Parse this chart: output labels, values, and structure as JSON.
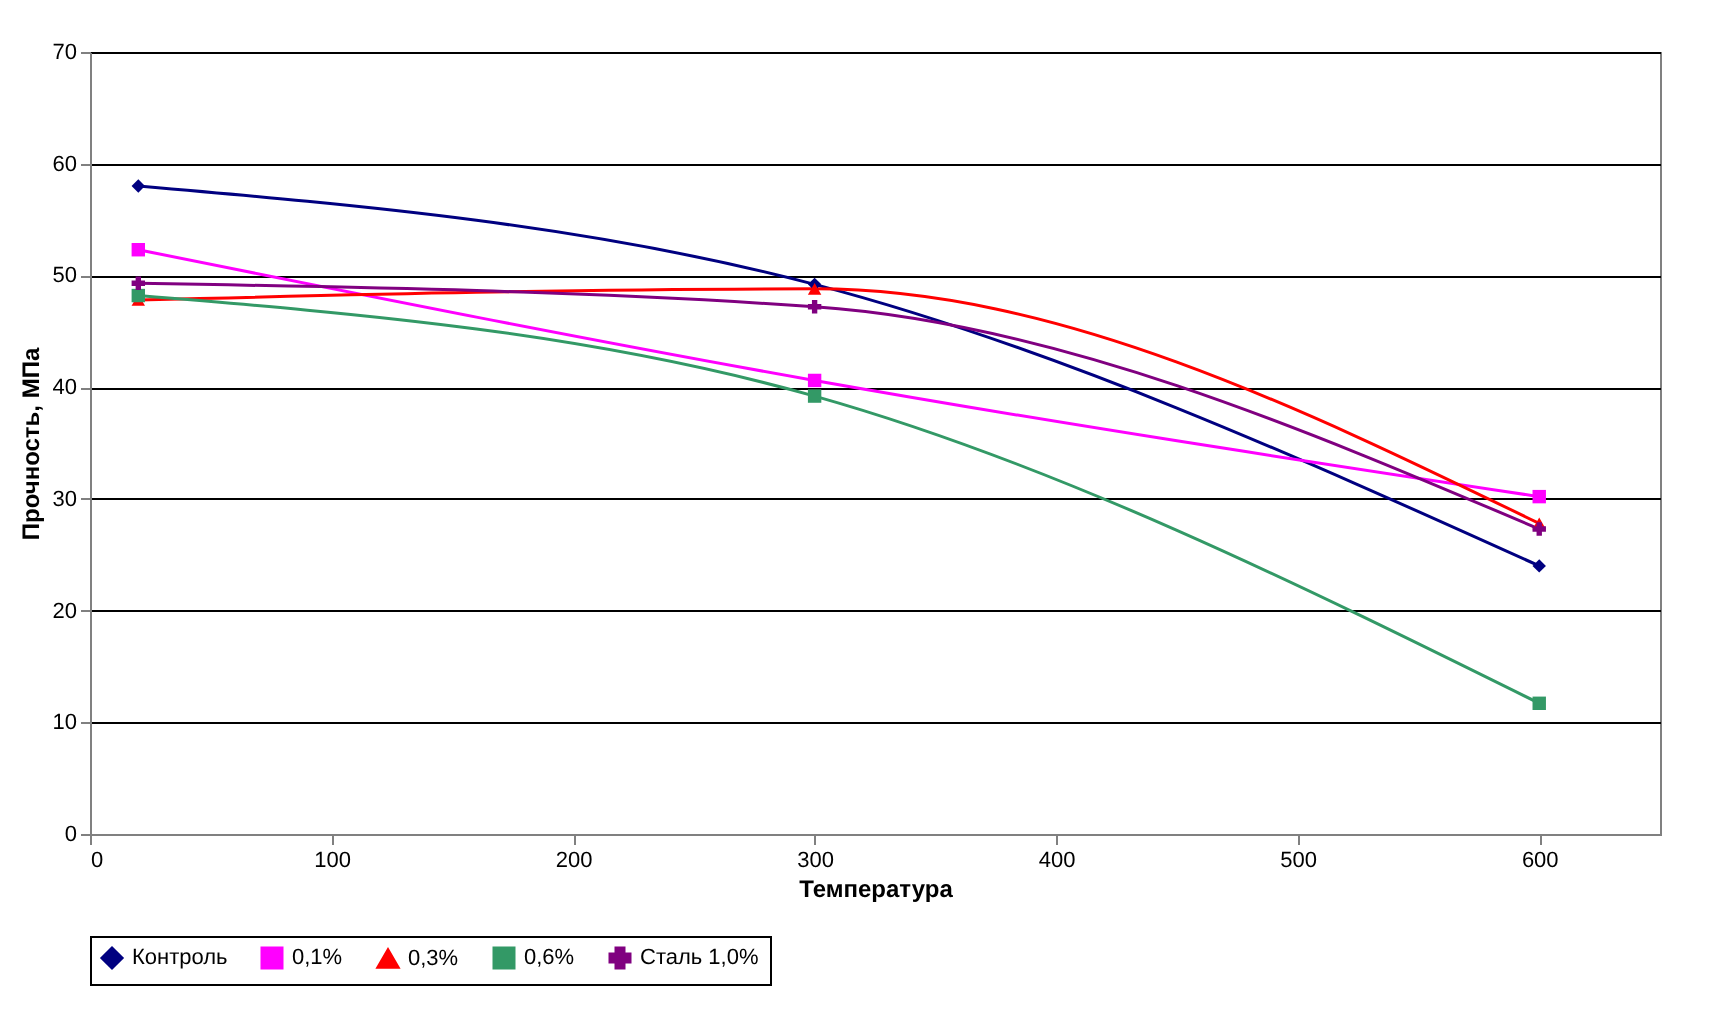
{
  "chart_data": {
    "type": "line",
    "xlabel": "Температура",
    "ylabel": "Прочность, МПа",
    "x": [
      20,
      300,
      600
    ],
    "series": [
      {
        "name": "Контроль",
        "color": "#000080",
        "marker": "diamond",
        "values": [
          58.0,
          49.2,
          24.0
        ]
      },
      {
        "name": "0,1%",
        "color": "#ff00ff",
        "marker": "square",
        "values": [
          52.3,
          40.6,
          30.2
        ]
      },
      {
        "name": "0,3%",
        "color": "#ff0000",
        "marker": "triangle",
        "values": [
          47.8,
          48.8,
          27.8
        ]
      },
      {
        "name": "0,6%",
        "color": "#339966",
        "marker": "square",
        "values": [
          48.2,
          39.2,
          11.7
        ]
      },
      {
        "name": "Сталь 1,0%",
        "color": "#800080",
        "marker": "cross",
        "values": [
          49.3,
          47.2,
          27.3
        ]
      }
    ],
    "xlim": [
      0,
      650
    ],
    "xticks": [
      0,
      100,
      200,
      300,
      400,
      500,
      600
    ],
    "ylim": [
      0,
      70
    ],
    "yticks": [
      0,
      10,
      20,
      30,
      40,
      50,
      60,
      70
    ],
    "grid": "y",
    "legend": "bottom",
    "line_style": "solid"
  }
}
